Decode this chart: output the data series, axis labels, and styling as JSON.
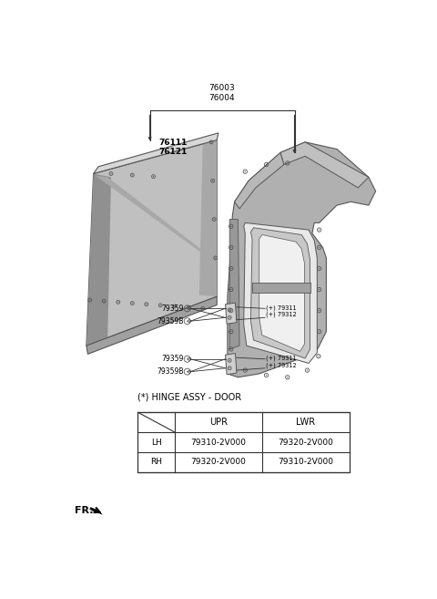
{
  "bg_color": "#ffffff",
  "fig_width": 4.8,
  "fig_height": 6.57,
  "dpi": 100,
  "bracket_line_color": "#333333",
  "part_edge_color": "#555555",
  "panel_face": "#b8b8b8",
  "panel_face_light": "#d0d0d0",
  "panel_face_dark": "#909090",
  "frame_face": "#a8a8a8",
  "frame_face_light": "#c8c8c8",
  "frame_face_dark": "#787878",
  "label_76003": "76003\n76004",
  "label_76111": "76111\n76121",
  "label_upper_hinge": "(+) 79311\n(+) 79312",
  "label_lower_hinge": "(+) 79311\n(+) 79312",
  "label_79359_u": "79359",
  "label_79359B_u": "79359B",
  "label_79359_l": "79359",
  "label_79359B_l": "79359B",
  "table_title": "(*) HINGE ASSY - DOOR",
  "table_headers": [
    "",
    "UPR",
    "LWR"
  ],
  "table_rows": [
    [
      "LH",
      "79310-2V000",
      "79320-2V000"
    ],
    [
      "RH",
      "79320-2V000",
      "79310-2V000"
    ]
  ],
  "fr_label": "FR."
}
